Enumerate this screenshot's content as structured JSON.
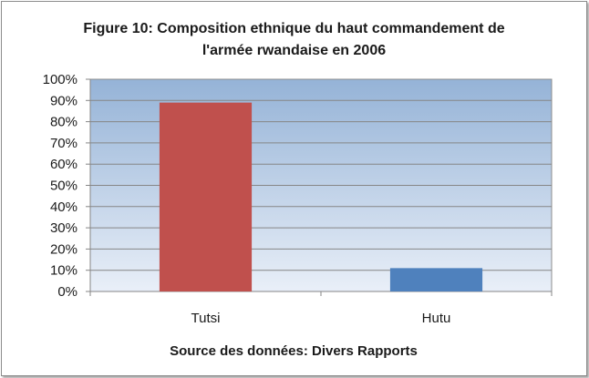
{
  "chart_data": {
    "type": "bar",
    "title_lines": [
      "Figure 10: Composition ethnique du haut commandement de",
      "l'armée rwandaise en 2006"
    ],
    "categories": [
      "Tutsi",
      "Hutu"
    ],
    "values": [
      89,
      11
    ],
    "value_format": "percent",
    "ylim": [
      0,
      100
    ],
    "ytick_step": 10,
    "yticks": [
      "0%",
      "10%",
      "20%",
      "30%",
      "40%",
      "50%",
      "60%",
      "70%",
      "80%",
      "90%",
      "100%"
    ],
    "xlabel": "Source des données: Divers Rapports",
    "ylabel": "",
    "grid": true,
    "legend": "none",
    "bar_colors": [
      "#c0504d",
      "#4f81bd"
    ],
    "plot_background": "gradient blue"
  }
}
